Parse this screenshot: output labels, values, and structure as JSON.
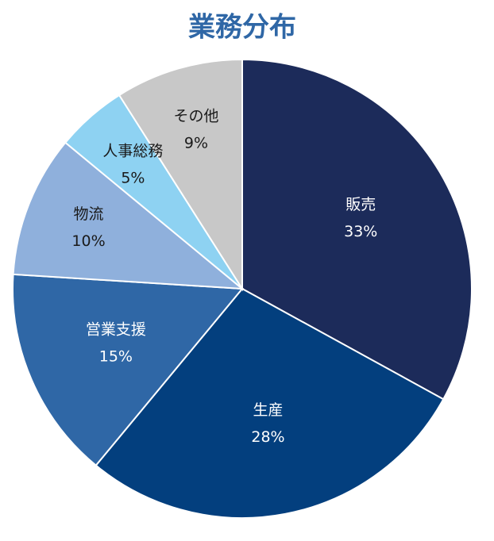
{
  "chart_data": {
    "type": "pie",
    "title": "業務分布",
    "categories": [
      "販売",
      "生産",
      "営業支援",
      "物流",
      "人事総務",
      "その他"
    ],
    "values": [
      33,
      28,
      15,
      10,
      5,
      9
    ],
    "value_labels": [
      "33%",
      "28%",
      "15%",
      "10%",
      "5%",
      "9%"
    ],
    "colors": [
      "#1c2b5a",
      "#033f7e",
      "#2f67a6",
      "#8fb0dc",
      "#8ed2f2",
      "#c8c8c8"
    ]
  }
}
